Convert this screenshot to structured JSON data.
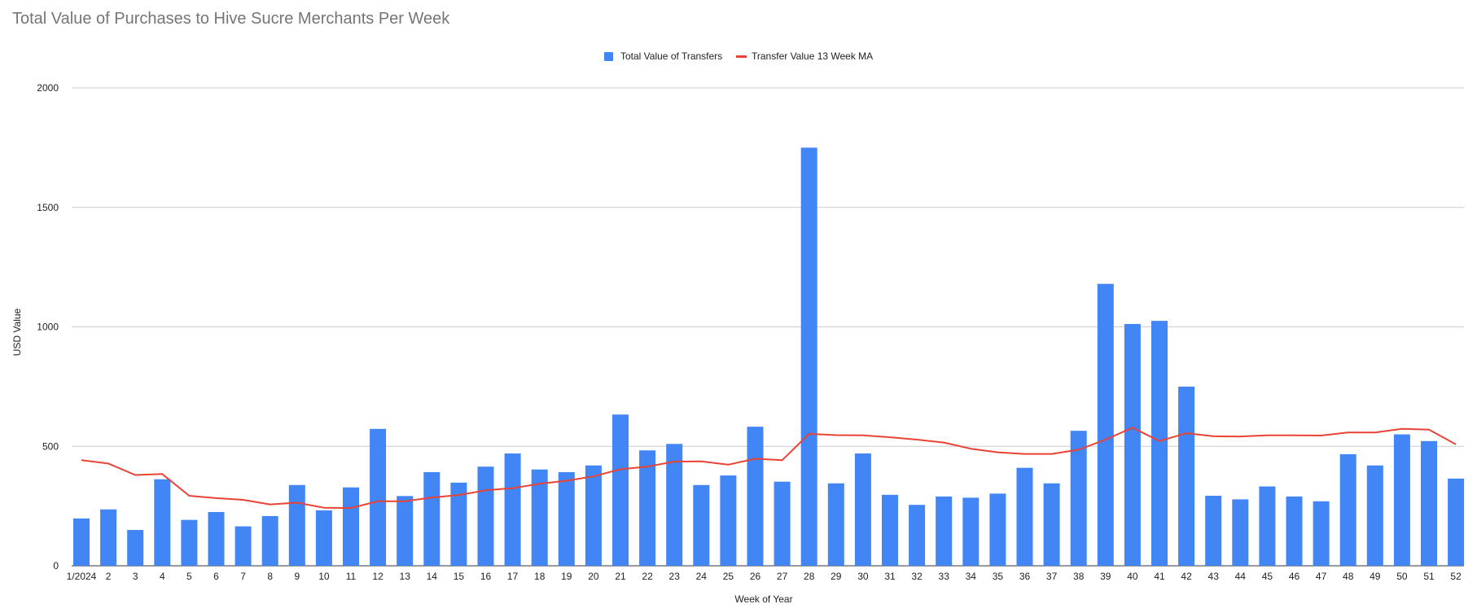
{
  "chart_data": {
    "type": "bar",
    "title": "Total Value of Purchases to Hive Sucre Merchants Per Week",
    "xlabel": "Week of Year",
    "ylabel": "USD Value",
    "ylim": [
      0,
      2000
    ],
    "yticks": [
      0,
      500,
      1000,
      1500,
      2000
    ],
    "grid": true,
    "legend_position": "top-center",
    "categories": [
      "1/2024",
      "2",
      "3",
      "4",
      "5",
      "6",
      "7",
      "8",
      "9",
      "10",
      "11",
      "12",
      "13",
      "14",
      "15",
      "16",
      "17",
      "18",
      "19",
      "20",
      "21",
      "22",
      "23",
      "24",
      "25",
      "26",
      "27",
      "28",
      "29",
      "30",
      "31",
      "32",
      "33",
      "34",
      "35",
      "36",
      "37",
      "38",
      "39",
      "40",
      "41",
      "42",
      "43",
      "44",
      "45",
      "46",
      "47",
      "48",
      "49",
      "50",
      "51",
      "52"
    ],
    "series": [
      {
        "name": "Total Value of Transfers",
        "type": "bar",
        "color": "#4285f4",
        "values": [
          198,
          236,
          150,
          362,
          192,
          225,
          165,
          208,
          338,
          232,
          328,
          573,
          292,
          392,
          348,
          415,
          470,
          403,
          392,
          420,
          633,
          483,
          510,
          338,
          378,
          582,
          352,
          1750,
          345,
          470,
          297,
          255,
          290,
          285,
          302,
          410,
          345,
          565,
          1180,
          1012,
          1025,
          750,
          293,
          278,
          332,
          290,
          270,
          467,
          420,
          550,
          522,
          365
        ]
      },
      {
        "name": "Transfer Value 13 Week MA",
        "type": "line",
        "color": "#ea4335",
        "values": [
          442,
          428,
          380,
          384,
          293,
          283,
          276,
          257,
          264,
          243,
          242,
          270,
          270,
          286,
          296,
          316,
          325,
          343,
          356,
          374,
          404,
          415,
          436,
          437,
          423,
          448,
          442,
          552,
          547,
          546,
          538,
          528,
          516,
          490,
          475,
          468,
          468,
          486,
          528,
          578,
          522,
          555,
          542,
          541,
          546,
          546,
          545,
          558,
          558,
          573,
          570,
          508
        ]
      }
    ]
  }
}
